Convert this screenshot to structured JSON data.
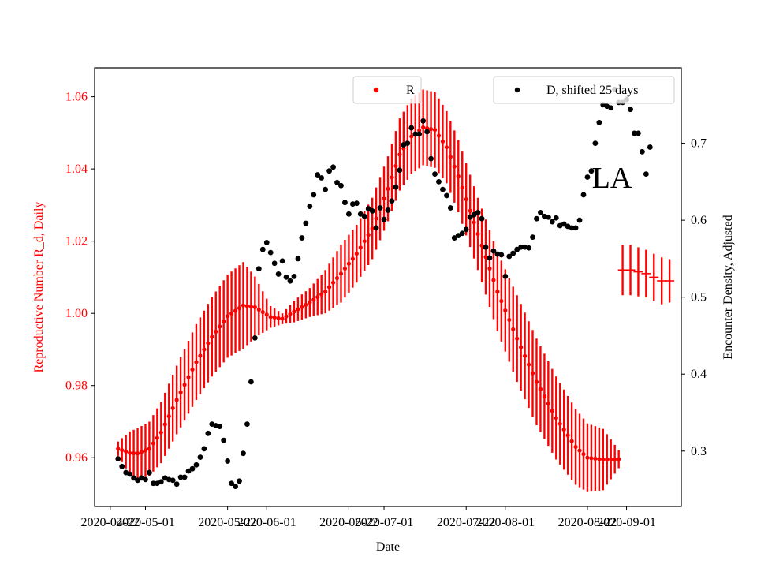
{
  "chart_data": {
    "type": "line+scatter",
    "xlabel": "Date",
    "ylabel_left": "Reproductive Number R_d, Daily",
    "ylabel_right": "Encounter Density, Adjusted",
    "annotation": "LA",
    "xlim": [
      "2020-04-18",
      "2020-09-15"
    ],
    "ylim_left": [
      0.9465,
      1.068
    ],
    "ylim_right": [
      0.228,
      0.798
    ],
    "x_ticks": [
      "2020-04-22",
      "2020-05-01",
      "2020-05-22",
      "2020-06-01",
      "2020-06-22",
      "2020-07-01",
      "2020-07-22",
      "2020-08-01",
      "2020-08-22",
      "2020-09-01"
    ],
    "y_ticks_left": [
      "0.96",
      "0.98",
      "1.00",
      "1.02",
      "1.04",
      "1.06"
    ],
    "y_ticks_right": [
      "0.3",
      "0.4",
      "0.5",
      "0.6",
      "0.7"
    ],
    "legend_left": {
      "label": "R",
      "position": "upper-center"
    },
    "legend_right": {
      "label": "D, shifted 25 days",
      "position": "upper-right"
    },
    "colors": {
      "r_series": "#ff0000",
      "d_series": "#000000",
      "left_axis": "#ff0000"
    },
    "r_series": {
      "name": "R",
      "keyframes": [
        [
          "2020-04-24",
          0.9625,
          0.002
        ],
        [
          "2020-04-27",
          0.9613,
          0.006
        ],
        [
          "2020-04-29",
          0.9612,
          0.007
        ],
        [
          "2020-05-02",
          0.9625,
          0.0075
        ],
        [
          "2020-05-05",
          0.967,
          0.0085
        ],
        [
          "2020-05-09",
          0.976,
          0.0095
        ],
        [
          "2020-05-14",
          0.9865,
          0.0105
        ],
        [
          "2020-05-18",
          0.9935,
          0.011
        ],
        [
          "2020-05-22",
          0.9992,
          0.0115
        ],
        [
          "2020-05-26",
          1.0022,
          0.012
        ],
        [
          "2020-05-29",
          1.0017,
          0.0085
        ],
        [
          "2020-06-02",
          0.999,
          0.003
        ],
        [
          "2020-06-05",
          0.9985,
          0.0015
        ],
        [
          "2020-06-08",
          1.0005,
          0.003
        ],
        [
          "2020-06-12",
          1.003,
          0.004
        ],
        [
          "2020-06-16",
          1.006,
          0.006
        ],
        [
          "2020-06-20",
          1.011,
          0.008
        ],
        [
          "2020-06-24",
          1.0165,
          0.008
        ],
        [
          "2020-06-28",
          1.0235,
          0.0085
        ],
        [
          "2020-07-02",
          1.0345,
          0.009
        ],
        [
          "2020-07-05",
          1.044,
          0.01
        ],
        [
          "2020-07-08",
          1.049,
          0.0105
        ],
        [
          "2020-07-11",
          1.0515,
          0.0105
        ],
        [
          "2020-07-14",
          1.0508,
          0.0105
        ],
        [
          "2020-07-17",
          1.046,
          0.01
        ],
        [
          "2020-07-20",
          1.038,
          0.01
        ],
        [
          "2020-07-25",
          1.022,
          0.01
        ],
        [
          "2020-07-30",
          1.006,
          0.011
        ],
        [
          "2020-08-04",
          0.993,
          0.012
        ],
        [
          "2020-08-09",
          0.981,
          0.012
        ],
        [
          "2020-08-14",
          0.971,
          0.0115
        ],
        [
          "2020-08-19",
          0.963,
          0.0105
        ],
        [
          "2020-08-22",
          0.96,
          0.0095
        ],
        [
          "2020-08-26",
          0.9595,
          0.0085
        ],
        [
          "2020-08-30",
          0.9596,
          0.0025
        ]
      ],
      "tail_points": [
        [
          "2020-08-31",
          1.012,
          0.007
        ],
        [
          "2020-09-02",
          1.012,
          0.007
        ],
        [
          "2020-09-04",
          1.0115,
          0.0068
        ],
        [
          "2020-09-06",
          1.011,
          0.0066
        ],
        [
          "2020-09-08",
          1.01,
          0.0065
        ],
        [
          "2020-09-10",
          1.009,
          0.0065
        ],
        [
          "2020-09-12",
          1.009,
          0.006
        ]
      ]
    },
    "d_series": {
      "name": "D, shifted 25 days",
      "points": [
        [
          "2020-04-24",
          0.29
        ],
        [
          "2020-04-25",
          0.28
        ],
        [
          "2020-04-26",
          0.272
        ],
        [
          "2020-04-27",
          0.27
        ],
        [
          "2020-04-28",
          0.265
        ],
        [
          "2020-04-29",
          0.262
        ],
        [
          "2020-04-30",
          0.265
        ],
        [
          "2020-05-01",
          0.263
        ],
        [
          "2020-05-02",
          0.272
        ],
        [
          "2020-05-03",
          0.258
        ],
        [
          "2020-05-04",
          0.258
        ],
        [
          "2020-05-05",
          0.26
        ],
        [
          "2020-05-06",
          0.265
        ],
        [
          "2020-05-07",
          0.263
        ],
        [
          "2020-05-08",
          0.262
        ],
        [
          "2020-05-09",
          0.257
        ],
        [
          "2020-05-10",
          0.266
        ],
        [
          "2020-05-11",
          0.266
        ],
        [
          "2020-05-12",
          0.274
        ],
        [
          "2020-05-13",
          0.277
        ],
        [
          "2020-05-14",
          0.282
        ],
        [
          "2020-05-15",
          0.292
        ],
        [
          "2020-05-16",
          0.303
        ],
        [
          "2020-05-17",
          0.323
        ],
        [
          "2020-05-18",
          0.335
        ],
        [
          "2020-05-19",
          0.333
        ],
        [
          "2020-05-20",
          0.332
        ],
        [
          "2020-05-21",
          0.314
        ],
        [
          "2020-05-22",
          0.287
        ],
        [
          "2020-05-23",
          0.258
        ],
        [
          "2020-05-24",
          0.254
        ],
        [
          "2020-05-25",
          0.261
        ],
        [
          "2020-05-26",
          0.297
        ],
        [
          "2020-05-27",
          0.335
        ],
        [
          "2020-05-28",
          0.39
        ],
        [
          "2020-05-29",
          0.447
        ],
        [
          "2020-05-30",
          0.537
        ],
        [
          "2020-05-31",
          0.562
        ],
        [
          "2020-06-01",
          0.571
        ],
        [
          "2020-06-02",
          0.558
        ],
        [
          "2020-06-03",
          0.544
        ],
        [
          "2020-06-04",
          0.53
        ],
        [
          "2020-06-05",
          0.547
        ],
        [
          "2020-06-06",
          0.526
        ],
        [
          "2020-06-07",
          0.521
        ],
        [
          "2020-06-08",
          0.527
        ],
        [
          "2020-06-09",
          0.55
        ],
        [
          "2020-06-10",
          0.577
        ],
        [
          "2020-06-11",
          0.596
        ],
        [
          "2020-06-12",
          0.618
        ],
        [
          "2020-06-13",
          0.633
        ],
        [
          "2020-06-14",
          0.659
        ],
        [
          "2020-06-15",
          0.655
        ],
        [
          "2020-06-16",
          0.64
        ],
        [
          "2020-06-17",
          0.664
        ],
        [
          "2020-06-18",
          0.669
        ],
        [
          "2020-06-19",
          0.649
        ],
        [
          "2020-06-20",
          0.645
        ],
        [
          "2020-06-21",
          0.623
        ],
        [
          "2020-06-22",
          0.608
        ],
        [
          "2020-06-23",
          0.621
        ],
        [
          "2020-06-24",
          0.622
        ],
        [
          "2020-06-25",
          0.608
        ],
        [
          "2020-06-26",
          0.605
        ],
        [
          "2020-06-27",
          0.615
        ],
        [
          "2020-06-28",
          0.612
        ],
        [
          "2020-06-29",
          0.59
        ],
        [
          "2020-06-30",
          0.616
        ],
        [
          "2020-07-01",
          0.601
        ],
        [
          "2020-07-02",
          0.613
        ],
        [
          "2020-07-03",
          0.625
        ],
        [
          "2020-07-04",
          0.643
        ],
        [
          "2020-07-05",
          0.665
        ],
        [
          "2020-07-06",
          0.698
        ],
        [
          "2020-07-07",
          0.7
        ],
        [
          "2020-07-08",
          0.72
        ],
        [
          "2020-07-09",
          0.712
        ],
        [
          "2020-07-10",
          0.712
        ],
        [
          "2020-07-11",
          0.729
        ],
        [
          "2020-07-12",
          0.715
        ],
        [
          "2020-07-13",
          0.68
        ],
        [
          "2020-07-14",
          0.66
        ],
        [
          "2020-07-15",
          0.65
        ],
        [
          "2020-07-16",
          0.64
        ],
        [
          "2020-07-17",
          0.632
        ],
        [
          "2020-07-18",
          0.616
        ],
        [
          "2020-07-19",
          0.577
        ],
        [
          "2020-07-20",
          0.58
        ],
        [
          "2020-07-21",
          0.583
        ],
        [
          "2020-07-22",
          0.588
        ],
        [
          "2020-07-23",
          0.604
        ],
        [
          "2020-07-24",
          0.607
        ],
        [
          "2020-07-25",
          0.61
        ],
        [
          "2020-07-26",
          0.602
        ],
        [
          "2020-07-27",
          0.565
        ],
        [
          "2020-07-28",
          0.551
        ],
        [
          "2020-07-29",
          0.56
        ],
        [
          "2020-07-30",
          0.556
        ],
        [
          "2020-07-31",
          0.555
        ],
        [
          "2020-08-01",
          0.527
        ],
        [
          "2020-08-02",
          0.553
        ],
        [
          "2020-08-03",
          0.557
        ],
        [
          "2020-08-04",
          0.562
        ],
        [
          "2020-08-05",
          0.565
        ],
        [
          "2020-08-06",
          0.565
        ],
        [
          "2020-08-07",
          0.564
        ],
        [
          "2020-08-08",
          0.578
        ],
        [
          "2020-08-09",
          0.602
        ],
        [
          "2020-08-10",
          0.61
        ],
        [
          "2020-08-11",
          0.605
        ],
        [
          "2020-08-12",
          0.604
        ],
        [
          "2020-08-13",
          0.598
        ],
        [
          "2020-08-14",
          0.603
        ],
        [
          "2020-08-15",
          0.593
        ],
        [
          "2020-08-16",
          0.595
        ],
        [
          "2020-08-17",
          0.592
        ],
        [
          "2020-08-18",
          0.59
        ],
        [
          "2020-08-19",
          0.59
        ],
        [
          "2020-08-20",
          0.6
        ],
        [
          "2020-08-21",
          0.633
        ],
        [
          "2020-08-22",
          0.656
        ],
        [
          "2020-08-23",
          0.664
        ],
        [
          "2020-08-24",
          0.7
        ],
        [
          "2020-08-25",
          0.727
        ],
        [
          "2020-08-26",
          0.75
        ],
        [
          "2020-08-27",
          0.748
        ],
        [
          "2020-08-28",
          0.746
        ],
        [
          "2020-08-29",
          0.77
        ],
        [
          "2020-08-30",
          0.753
        ],
        [
          "2020-08-31",
          0.753
        ],
        [
          "2020-09-01",
          0.757
        ],
        [
          "2020-09-02",
          0.744
        ],
        [
          "2020-09-03",
          0.713
        ],
        [
          "2020-09-04",
          0.713
        ],
        [
          "2020-09-05",
          0.689
        ],
        [
          "2020-09-06",
          0.66
        ],
        [
          "2020-09-07",
          0.695
        ]
      ]
    }
  }
}
